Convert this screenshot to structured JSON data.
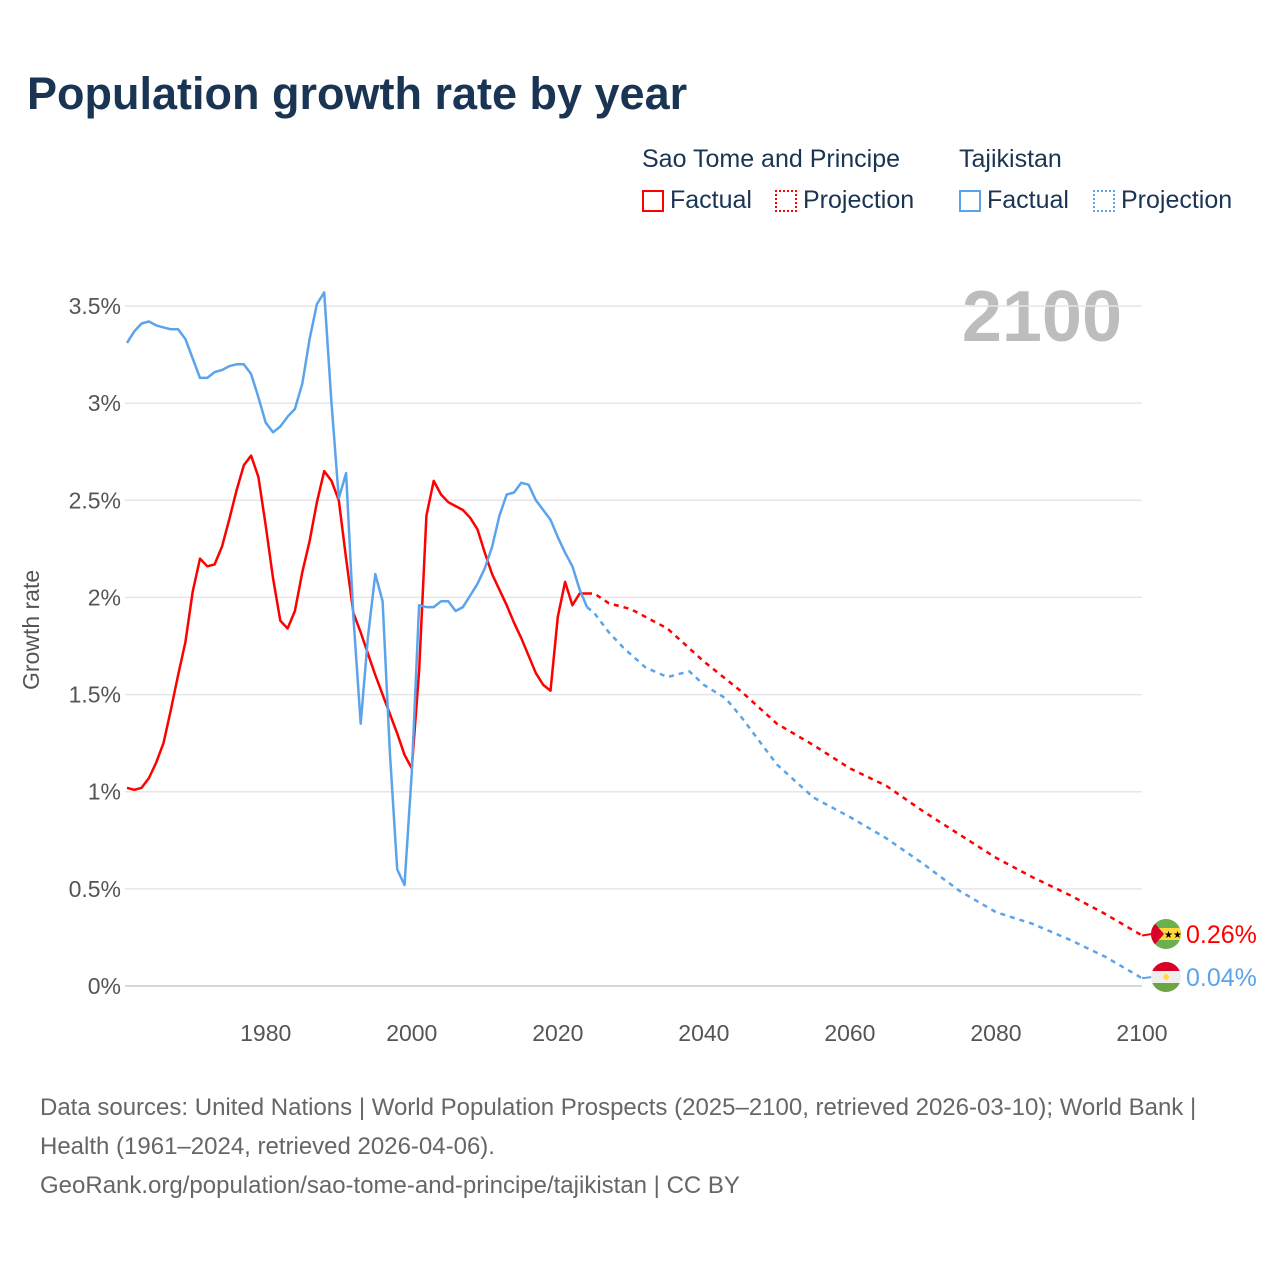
{
  "title": "Population growth rate by year",
  "current_year": "2100",
  "legend": {
    "countries": [
      {
        "name": "Sao Tome and Principe",
        "factual": "Factual",
        "projection": "Projection",
        "color": "#ff0000"
      },
      {
        "name": "Tajikistan",
        "factual": "Factual",
        "projection": "Projection",
        "color": "#5ba4ec"
      }
    ]
  },
  "footer": {
    "sources": "Data sources: United Nations | World Population Prospects (2025–2100, retrieved 2026-03-10); World Bank | Health (1961–2024, retrieved 2026-04-06).",
    "link": "GeoRank.org/population/sao-tome-and-principe/tajikistan | CC BY"
  },
  "chart_data": {
    "type": "line",
    "title": "Population growth rate by year",
    "xlabel": "",
    "ylabel": "Growth rate",
    "xlim": [
      1961,
      2100
    ],
    "ylim": [
      0,
      3.5
    ],
    "x_ticks": [
      1980,
      2000,
      2020,
      2040,
      2060,
      2080,
      2100
    ],
    "y_ticks": [
      0,
      0.5,
      1,
      1.5,
      2,
      2.5,
      3,
      3.5
    ],
    "y_tick_labels": [
      "0%",
      "0.5%",
      "1%",
      "1.5%",
      "2%",
      "2.5%",
      "3%",
      "3.5%"
    ],
    "grid": true,
    "legend_position": "top-right",
    "series": [
      {
        "name": "Sao Tome and Principe – Factual",
        "color": "#ff0000",
        "dashed": false,
        "x": [
          1961,
          1962,
          1963,
          1964,
          1965,
          1966,
          1967,
          1968,
          1969,
          1970,
          1971,
          1972,
          1973,
          1974,
          1975,
          1976,
          1977,
          1978,
          1979,
          1980,
          1981,
          1982,
          1983,
          1984,
          1985,
          1986,
          1987,
          1988,
          1989,
          1990,
          1991,
          1992,
          1993,
          1994,
          1995,
          1996,
          1997,
          1998,
          1999,
          2000,
          2001,
          2002,
          2003,
          2004,
          2005,
          2006,
          2007,
          2008,
          2009,
          2010,
          2011,
          2012,
          2013,
          2014,
          2015,
          2016,
          2017,
          2018,
          2019,
          2020,
          2021,
          2022,
          2023,
          2024
        ],
        "y": [
          1.02,
          1.01,
          1.02,
          1.07,
          1.15,
          1.25,
          1.42,
          1.6,
          1.77,
          2.03,
          2.2,
          2.16,
          2.17,
          2.26,
          2.4,
          2.55,
          2.68,
          2.73,
          2.62,
          2.37,
          2.1,
          1.88,
          1.84,
          1.93,
          2.13,
          2.29,
          2.49,
          2.65,
          2.6,
          2.5,
          2.2,
          1.92,
          1.82,
          1.71,
          1.6,
          1.5,
          1.4,
          1.3,
          1.19,
          1.12,
          1.62,
          2.42,
          2.6,
          2.53,
          2.49,
          2.47,
          2.45,
          2.41,
          2.35,
          2.23,
          2.12,
          2.04,
          1.96,
          1.87,
          1.79,
          1.7,
          1.61,
          1.55,
          1.52,
          1.9,
          2.08,
          1.96,
          2.02,
          2.02
        ]
      },
      {
        "name": "Sao Tome and Principe – Projection",
        "color": "#ff0000",
        "dashed": true,
        "x": [
          2024,
          2025,
          2027,
          2030,
          2035,
          2040,
          2045,
          2050,
          2055,
          2060,
          2065,
          2070,
          2075,
          2080,
          2085,
          2090,
          2095,
          2100
        ],
        "y": [
          2.02,
          2.02,
          1.97,
          1.94,
          1.84,
          1.67,
          1.52,
          1.35,
          1.24,
          1.12,
          1.03,
          0.9,
          0.78,
          0.66,
          0.56,
          0.47,
          0.37,
          0.26
        ]
      },
      {
        "name": "Tajikistan – Factual",
        "color": "#5ba4ec",
        "dashed": false,
        "x": [
          1961,
          1962,
          1963,
          1964,
          1965,
          1966,
          1967,
          1968,
          1969,
          1970,
          1971,
          1972,
          1973,
          1974,
          1975,
          1976,
          1977,
          1978,
          1979,
          1980,
          1981,
          1982,
          1983,
          1984,
          1985,
          1986,
          1987,
          1988,
          1989,
          1990,
          1991,
          1992,
          1993,
          1994,
          1995,
          1996,
          1997,
          1998,
          1999,
          2000,
          2001,
          2002,
          2003,
          2004,
          2005,
          2006,
          2007,
          2008,
          2009,
          2010,
          2011,
          2012,
          2013,
          2014,
          2015,
          2016,
          2017,
          2018,
          2019,
          2020,
          2021,
          2022,
          2023,
          2024
        ],
        "y": [
          3.31,
          3.37,
          3.41,
          3.42,
          3.4,
          3.39,
          3.38,
          3.38,
          3.33,
          3.23,
          3.13,
          3.13,
          3.16,
          3.17,
          3.19,
          3.2,
          3.2,
          3.15,
          3.03,
          2.9,
          2.85,
          2.88,
          2.93,
          2.97,
          3.1,
          3.33,
          3.51,
          3.57,
          3.0,
          2.51,
          2.64,
          1.9,
          1.35,
          1.8,
          2.12,
          1.98,
          1.2,
          0.6,
          0.52,
          1.1,
          1.96,
          1.95,
          1.95,
          1.98,
          1.98,
          1.93,
          1.95,
          2.01,
          2.07,
          2.15,
          2.26,
          2.42,
          2.53,
          2.54,
          2.59,
          2.58,
          2.5,
          2.45,
          2.4,
          2.31,
          2.23,
          2.16,
          2.04,
          1.95
        ]
      },
      {
        "name": "Tajikistan – Projection",
        "color": "#5ba4ec",
        "dashed": true,
        "x": [
          2024,
          2025,
          2027,
          2029,
          2032,
          2035,
          2037,
          2038,
          2040,
          2043,
          2045,
          2050,
          2055,
          2060,
          2065,
          2070,
          2075,
          2080,
          2085,
          2090,
          2095,
          2100
        ],
        "y": [
          1.95,
          1.92,
          1.82,
          1.74,
          1.64,
          1.59,
          1.61,
          1.62,
          1.55,
          1.48,
          1.39,
          1.14,
          0.97,
          0.87,
          0.76,
          0.63,
          0.49,
          0.38,
          0.32,
          0.24,
          0.15,
          0.04
        ]
      }
    ],
    "end_labels": [
      {
        "country": "Sao Tome and Principe",
        "text": "0.26%",
        "value": 0.26,
        "color": "#ff0000"
      },
      {
        "country": "Tajikistan",
        "text": "0.04%",
        "value": 0.04,
        "color": "#5ba4ec"
      }
    ]
  }
}
